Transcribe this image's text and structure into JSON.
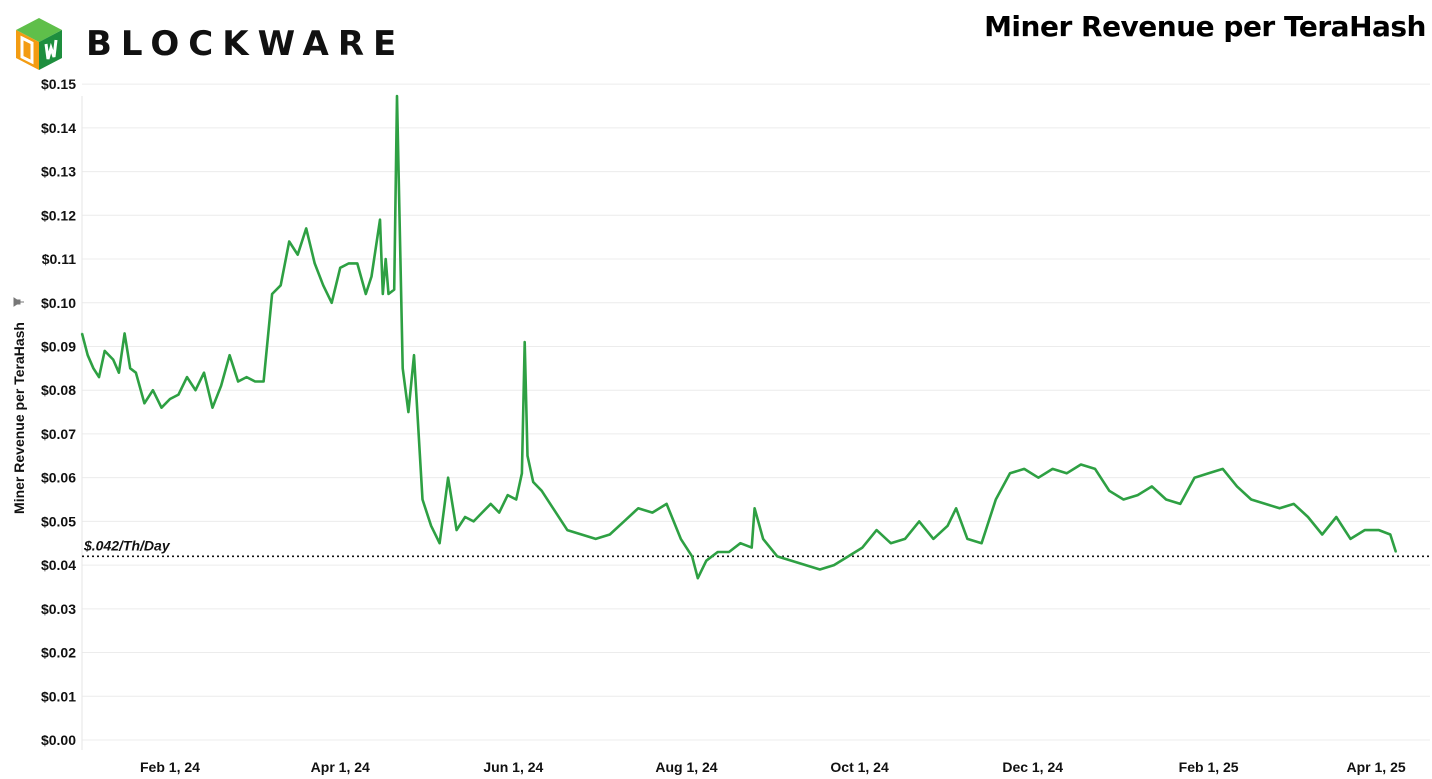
{
  "header": {
    "brand": "BLOCKWARE",
    "title": "Miner Revenue per TeraHash"
  },
  "colors": {
    "line": "#2ea043",
    "grid": "#ececec",
    "logo_orange": "#f39c12",
    "logo_green": "#1e8e3e",
    "logo_dark_green": "#0d5c2a"
  },
  "chart_data": {
    "type": "line",
    "title": "Miner Revenue per TeraHash",
    "ylabel": "Miner Revenue per TeraHash",
    "xlabel": "",
    "ylim": [
      0,
      0.15
    ],
    "xlim": [
      "2024-01-01",
      "2025-04-20"
    ],
    "y_ticks": [
      "$0.00",
      "$0.01",
      "$0.02",
      "$0.03",
      "$0.04",
      "$0.05",
      "$0.06",
      "$0.07",
      "$0.08",
      "$0.09",
      "$0.10",
      "$0.11",
      "$0.12",
      "$0.13",
      "$0.14",
      "$0.15"
    ],
    "x_ticks": [
      {
        "date": "2024-02-01",
        "label": "Feb 1, 24"
      },
      {
        "date": "2024-04-01",
        "label": "Apr 1, 24"
      },
      {
        "date": "2024-06-01",
        "label": "Jun 1, 24"
      },
      {
        "date": "2024-08-01",
        "label": "Aug 1, 24"
      },
      {
        "date": "2024-10-01",
        "label": "Oct 1, 24"
      },
      {
        "date": "2024-12-01",
        "label": "Dec 1, 24"
      },
      {
        "date": "2025-02-01",
        "label": "Feb 1, 25"
      },
      {
        "date": "2025-04-01",
        "label": "Apr 1, 25"
      }
    ],
    "reference_line": {
      "value": 0.042,
      "label": "$.042/Th/Day"
    },
    "grid": true,
    "series": [
      {
        "name": "",
        "x": [
          "2024-01-01",
          "2024-01-03",
          "2024-01-05",
          "2024-01-07",
          "2024-01-09",
          "2024-01-12",
          "2024-01-14",
          "2024-01-16",
          "2024-01-18",
          "2024-01-20",
          "2024-01-23",
          "2024-01-26",
          "2024-01-29",
          "2024-02-01",
          "2024-02-04",
          "2024-02-07",
          "2024-02-10",
          "2024-02-13",
          "2024-02-16",
          "2024-02-19",
          "2024-02-22",
          "2024-02-25",
          "2024-02-28",
          "2024-03-02",
          "2024-03-05",
          "2024-03-08",
          "2024-03-11",
          "2024-03-14",
          "2024-03-17",
          "2024-03-20",
          "2024-03-23",
          "2024-03-26",
          "2024-03-29",
          "2024-04-01",
          "2024-04-04",
          "2024-04-07",
          "2024-04-10",
          "2024-04-12",
          "2024-04-15",
          "2024-04-16",
          "2024-04-17",
          "2024-04-18",
          "2024-04-20",
          "2024-04-21",
          "2024-04-23",
          "2024-04-25",
          "2024-04-27",
          "2024-04-30",
          "2024-05-03",
          "2024-05-06",
          "2024-05-09",
          "2024-05-12",
          "2024-05-15",
          "2024-05-18",
          "2024-05-21",
          "2024-05-24",
          "2024-05-27",
          "2024-05-30",
          "2024-06-02",
          "2024-06-04",
          "2024-06-05",
          "2024-06-06",
          "2024-06-08",
          "2024-06-11",
          "2024-06-15",
          "2024-06-20",
          "2024-06-25",
          "2024-06-30",
          "2024-07-05",
          "2024-07-10",
          "2024-07-15",
          "2024-07-20",
          "2024-07-25",
          "2024-07-30",
          "2024-08-03",
          "2024-08-05",
          "2024-08-08",
          "2024-08-12",
          "2024-08-16",
          "2024-08-20",
          "2024-08-24",
          "2024-08-25",
          "2024-08-28",
          "2024-09-02",
          "2024-09-07",
          "2024-09-12",
          "2024-09-17",
          "2024-09-22",
          "2024-09-27",
          "2024-10-02",
          "2024-10-07",
          "2024-10-12",
          "2024-10-17",
          "2024-10-22",
          "2024-10-27",
          "2024-11-01",
          "2024-11-04",
          "2024-11-08",
          "2024-11-13",
          "2024-11-18",
          "2024-11-23",
          "2024-11-28",
          "2024-12-03",
          "2024-12-08",
          "2024-12-13",
          "2024-12-18",
          "2024-12-23",
          "2024-12-28",
          "2025-01-02",
          "2025-01-07",
          "2025-01-12",
          "2025-01-17",
          "2025-01-22",
          "2025-01-27",
          "2025-02-01",
          "2025-02-06",
          "2025-02-11",
          "2025-02-16",
          "2025-02-21",
          "2025-02-26",
          "2025-03-03",
          "2025-03-08",
          "2025-03-13",
          "2025-03-18",
          "2025-03-23",
          "2025-03-28",
          "2025-04-02",
          "2025-04-06",
          "2025-04-08"
        ],
        "y": [
          0.093,
          0.088,
          0.085,
          0.083,
          0.089,
          0.087,
          0.084,
          0.093,
          0.085,
          0.084,
          0.077,
          0.08,
          0.076,
          0.078,
          0.079,
          0.083,
          0.08,
          0.084,
          0.076,
          0.081,
          0.088,
          0.082,
          0.083,
          0.082,
          0.082,
          0.102,
          0.104,
          0.114,
          0.111,
          0.117,
          0.109,
          0.104,
          0.1,
          0.108,
          0.109,
          0.109,
          0.102,
          0.106,
          0.119,
          0.102,
          0.11,
          0.102,
          0.103,
          0.16,
          0.085,
          0.075,
          0.088,
          0.055,
          0.049,
          0.045,
          0.06,
          0.048,
          0.051,
          0.05,
          0.052,
          0.054,
          0.052,
          0.056,
          0.055,
          0.061,
          0.091,
          0.065,
          0.059,
          0.057,
          0.053,
          0.048,
          0.047,
          0.046,
          0.047,
          0.05,
          0.053,
          0.052,
          0.054,
          0.046,
          0.042,
          0.037,
          0.041,
          0.043,
          0.043,
          0.045,
          0.044,
          0.053,
          0.046,
          0.042,
          0.041,
          0.04,
          0.039,
          0.04,
          0.042,
          0.044,
          0.048,
          0.045,
          0.046,
          0.05,
          0.046,
          0.049,
          0.053,
          0.046,
          0.045,
          0.055,
          0.061,
          0.062,
          0.06,
          0.062,
          0.061,
          0.063,
          0.062,
          0.057,
          0.055,
          0.056,
          0.058,
          0.055,
          0.054,
          0.06,
          0.061,
          0.062,
          0.058,
          0.055,
          0.054,
          0.053,
          0.054,
          0.051,
          0.047,
          0.051,
          0.046,
          0.048,
          0.048,
          0.047,
          0.043
        ]
      }
    ]
  }
}
